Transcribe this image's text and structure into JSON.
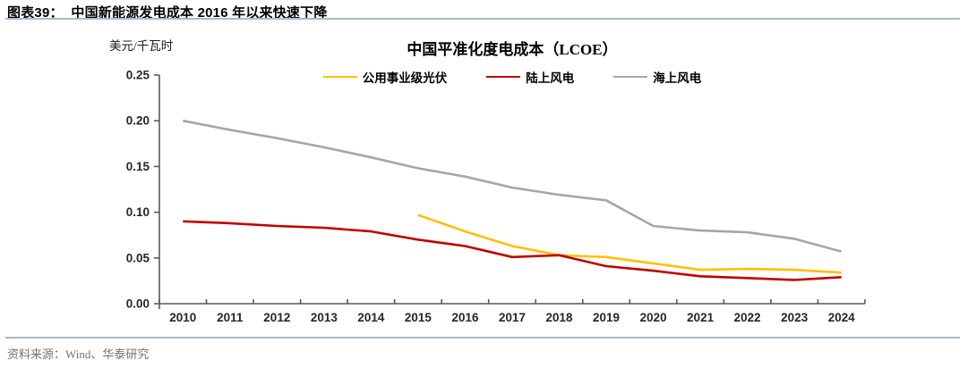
{
  "header": {
    "title": "图表39：  中国新能源发电成本 2016 年以来快速下降"
  },
  "chart_data": {
    "type": "line",
    "title": "中国平准化度电成本（LCOE）",
    "unit_label": "美元/千瓦时",
    "x": [
      "2010",
      "2011",
      "2012",
      "2013",
      "2014",
      "2015",
      "2016",
      "2017",
      "2018",
      "2019",
      "2020",
      "2021",
      "2022",
      "2023",
      "2024"
    ],
    "ylim": [
      0,
      0.25
    ],
    "yticks": [
      "0.00",
      "0.05",
      "0.10",
      "0.15",
      "0.20",
      "0.25"
    ],
    "grid": false,
    "legend_position": "top-center",
    "series": [
      {
        "id": "utility-pv",
        "name": "公用事业级光伏",
        "color": "#FFC000",
        "values": [
          null,
          null,
          null,
          null,
          null,
          0.097,
          0.079,
          0.063,
          0.053,
          0.051,
          0.044,
          0.037,
          0.038,
          0.037,
          0.034
        ]
      },
      {
        "id": "onshore-wind",
        "name": "陆上风电",
        "color": "#C00000",
        "values": [
          0.09,
          0.088,
          0.085,
          0.083,
          0.079,
          0.07,
          0.063,
          0.051,
          0.053,
          0.041,
          0.036,
          0.03,
          0.028,
          0.026,
          0.029
        ]
      },
      {
        "id": "offshore-wind",
        "name": "海上风电",
        "color": "#A6A6A6",
        "values": [
          0.2,
          0.19,
          0.181,
          0.171,
          0.16,
          0.148,
          0.139,
          0.127,
          0.119,
          0.113,
          0.085,
          0.08,
          0.078,
          0.071,
          0.057
        ]
      }
    ]
  },
  "footer": {
    "source": "资料来源：Wind、华泰研究"
  },
  "colors": {
    "accent_divider": "#A8B9CD",
    "axis": "#595959",
    "tick_label": "#262626",
    "source_text": "#737373"
  }
}
